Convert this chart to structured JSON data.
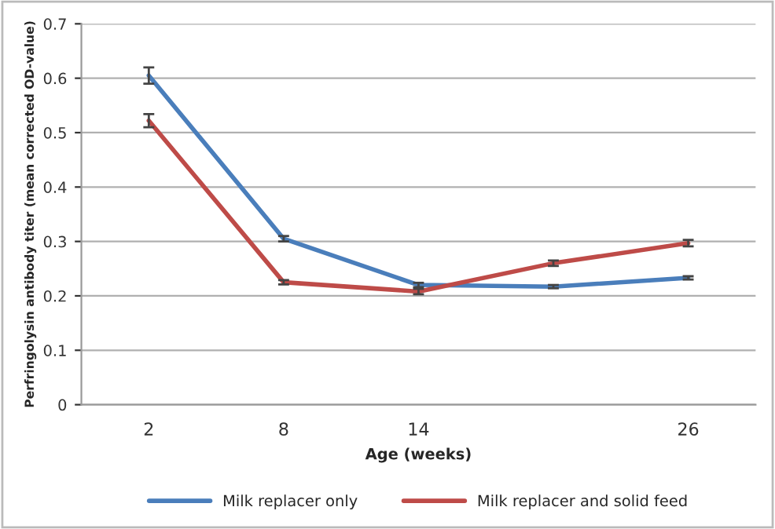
{
  "chart_data": {
    "type": "line",
    "xlabel": "Age (weeks)",
    "ylabel": "Perfringolysin antibody titer (mean corrected OD-value)",
    "categories": [
      "2",
      "8",
      "14",
      null,
      "26"
    ],
    "series": [
      {
        "name": "Milk replacer only",
        "color": "#4a7ebb",
        "values": [
          0.605,
          0.305,
          0.22,
          0.217,
          0.233
        ],
        "errors": [
          0.015,
          0.005,
          0.004,
          0.003,
          0.003
        ]
      },
      {
        "name": "Milk replacer and solid feed",
        "color": "#be4b48",
        "values": [
          0.522,
          0.225,
          0.208,
          0.26,
          0.297
        ],
        "errors": [
          0.012,
          0.004,
          0.005,
          0.005,
          0.006
        ]
      }
    ],
    "ylim": [
      0,
      0.7
    ],
    "yticks": [
      0,
      0.1,
      0.2,
      0.3,
      0.4,
      0.5,
      0.6,
      0.7
    ],
    "grid": "y",
    "legend": "bottom",
    "marker": "none",
    "line_style": "solid"
  }
}
